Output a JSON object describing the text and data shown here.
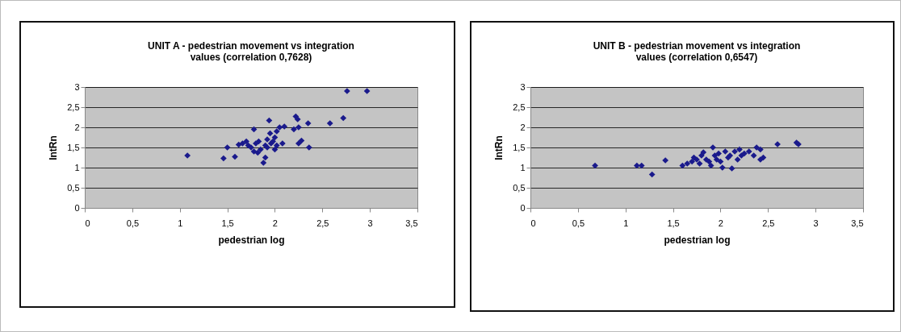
{
  "chart_data": [
    {
      "type": "scatter",
      "title": "UNIT A - pedestrian movement vs integration values (correlation 0,7628)",
      "xlabel": "pedestrian log",
      "ylabel": "IntRn",
      "marker": "diamond",
      "grid": "y",
      "color": "#1a1a8c",
      "x": [
        1.08,
        1.46,
        1.5,
        1.58,
        1.62,
        1.66,
        1.7,
        1.72,
        1.75,
        1.78,
        1.78,
        1.8,
        1.82,
        1.85,
        1.88,
        1.9,
        1.9,
        1.92,
        1.94,
        1.95,
        1.96,
        1.98,
        2.0,
        2.02,
        2.02,
        2.05,
        2.08,
        2.1,
        2.2,
        2.22,
        2.24,
        2.25,
        2.25,
        2.28,
        2.35,
        2.36,
        2.58,
        2.72,
        2.76,
        2.97,
        1.83,
        1.92,
        2.0
      ],
      "values": [
        1.3,
        1.23,
        1.5,
        1.27,
        1.57,
        1.6,
        1.65,
        1.55,
        1.5,
        1.95,
        1.4,
        1.6,
        1.37,
        1.45,
        1.12,
        1.25,
        1.55,
        1.7,
        2.17,
        1.85,
        1.6,
        1.65,
        1.75,
        1.9,
        1.55,
        2.0,
        1.6,
        2.02,
        1.95,
        2.27,
        2.2,
        2.0,
        1.6,
        1.67,
        2.1,
        1.5,
        2.1,
        2.23,
        2.9,
        2.9,
        1.65,
        1.5,
        1.45
      ],
      "xlim": [
        0,
        3.5
      ],
      "ylim": [
        0,
        3
      ],
      "xticks": [
        0,
        {
          "value": 0.5,
          "label": "0,5"
        },
        1,
        {
          "value": 1.5,
          "label": "1,5"
        },
        2,
        {
          "value": 2.5,
          "label": "2,5"
        },
        3,
        {
          "value": 3.5,
          "label": "3,5"
        }
      ],
      "yticks": [
        0,
        {
          "value": 0.5,
          "label": "0,5"
        },
        1,
        {
          "value": 1.5,
          "label": "1,5"
        },
        2,
        {
          "value": 2.5,
          "label": "2,5"
        },
        3
      ]
    },
    {
      "type": "scatter",
      "title": "UNIT B - pedestrian movement vs integration values (correlation 0,6547)",
      "xlabel": "pedestrian log",
      "ylabel": "IntRn",
      "marker": "diamond",
      "grid": "y",
      "color": "#1a1a8c",
      "x": [
        0.68,
        1.12,
        1.17,
        1.28,
        1.42,
        1.6,
        1.65,
        1.7,
        1.75,
        1.78,
        1.8,
        1.82,
        1.85,
        1.88,
        1.9,
        1.92,
        1.94,
        1.96,
        1.98,
        2.02,
        2.05,
        2.08,
        2.1,
        2.12,
        2.15,
        2.18,
        2.2,
        2.22,
        2.25,
        2.3,
        2.35,
        2.38,
        2.42,
        2.45,
        2.42,
        2.6,
        2.8,
        2.82,
        1.72,
        2.0
      ],
      "values": [
        1.05,
        1.05,
        1.05,
        0.83,
        1.18,
        1.05,
        1.1,
        1.15,
        1.2,
        1.1,
        1.3,
        1.38,
        1.2,
        1.15,
        1.05,
        1.5,
        1.3,
        1.2,
        1.35,
        1.0,
        1.4,
        1.25,
        1.3,
        0.98,
        1.4,
        1.2,
        1.45,
        1.3,
        1.35,
        1.4,
        1.3,
        1.5,
        1.45,
        1.25,
        1.2,
        1.58,
        1.62,
        1.58,
        1.25,
        1.15
      ],
      "xlim": [
        0,
        3.5
      ],
      "ylim": [
        0,
        3
      ],
      "xticks": [
        0,
        {
          "value": 0.5,
          "label": "0,5"
        },
        1,
        {
          "value": 1.5,
          "label": "1,5"
        },
        2,
        {
          "value": 2.5,
          "label": "2,5"
        },
        3,
        {
          "value": 3.5,
          "label": "3,5"
        }
      ],
      "yticks": [
        0,
        {
          "value": 0.5,
          "label": "0,5"
        },
        1,
        {
          "value": 1.5,
          "label": "1,5"
        },
        2,
        {
          "value": 2.5,
          "label": "2,5"
        },
        3
      ]
    }
  ]
}
